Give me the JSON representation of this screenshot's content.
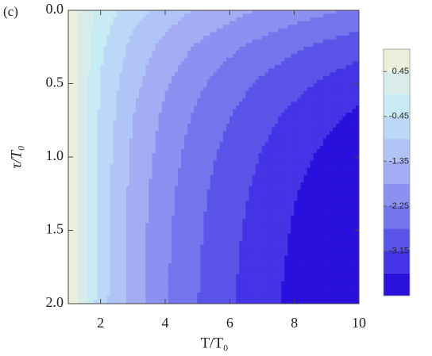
{
  "chart_data": {
    "type": "contour",
    "panel_label": "(c)",
    "x_label": "T/T₀",
    "y_label": "τ/T₀",
    "x": [
      1,
      2,
      3,
      4,
      5,
      6,
      7,
      8,
      9,
      10
    ],
    "y": [
      0,
      0.25,
      0.5,
      0.75,
      1,
      1.25,
      1.5,
      1.75,
      2
    ],
    "z": [
      [
        0.75,
        -0.17,
        -0.71,
        -1.09,
        -1.39,
        -1.63,
        -1.84,
        -2.02,
        -2.17,
        -2.31
      ],
      [
        0.79,
        -0.35,
        -1.02,
        -1.49,
        -1.85,
        -2.15,
        -2.4,
        -2.62,
        -2.81,
        -2.99
      ],
      [
        0.81,
        -0.47,
        -1.21,
        -1.74,
        -2.15,
        -2.49,
        -2.77,
        -3.02,
        -3.23,
        -3.43
      ],
      [
        0.82,
        -0.54,
        -1.35,
        -1.91,
        -2.35,
        -2.71,
        -3.02,
        -3.28,
        -3.51,
        -3.72
      ],
      [
        0.83,
        -0.6,
        -1.43,
        -2.02,
        -2.48,
        -2.86,
        -3.18,
        -3.45,
        -3.7,
        -3.92
      ],
      [
        0.84,
        -0.63,
        -1.49,
        -2.1,
        -2.57,
        -2.96,
        -3.28,
        -3.57,
        -3.82,
        -4.04
      ],
      [
        0.85,
        -0.65,
        -1.53,
        -2.15,
        -2.63,
        -3.02,
        -3.35,
        -3.64,
        -3.9,
        -4.12
      ],
      [
        0.85,
        -0.67,
        -1.55,
        -2.18,
        -2.66,
        -3.06,
        -3.4,
        -3.69,
        -3.95,
        -4.18
      ],
      [
        0.85,
        -0.68,
        -1.57,
        -2.2,
        -2.69,
        -3.09,
        -3.43,
        -3.72,
        -3.98,
        -4.22
      ]
    ],
    "xlim": [
      1,
      10
    ],
    "ylim": [
      0,
      2
    ],
    "y_inverted": true,
    "xticks": [
      2,
      4,
      6,
      8,
      10
    ],
    "yticks": [
      {
        "value": 0,
        "label": "0.0"
      },
      0.5,
      {
        "value": 1,
        "label": "1.0"
      },
      1.5,
      {
        "value": 2,
        "label": "2.0"
      }
    ],
    "levels": [
      0.45,
      0,
      -0.45,
      -0.9,
      -1.35,
      -1.8,
      -2.25,
      -2.7,
      -3.15,
      -3.6
    ],
    "colors": [
      "#eeeedc",
      "#d9ecea",
      "#c8ecf4",
      "#bcd8f8",
      "#b0c4f8",
      "#a4acf4",
      "#8c90f0",
      "#7474ec",
      "#5a54e8",
      "#4434e6",
      "#2a10dc"
    ],
    "zlim": [
      -4.05,
      0.9
    ],
    "colorbar_ticks": [
      0.45,
      -0.45,
      -1.35,
      -2.25,
      -3.15
    ]
  }
}
